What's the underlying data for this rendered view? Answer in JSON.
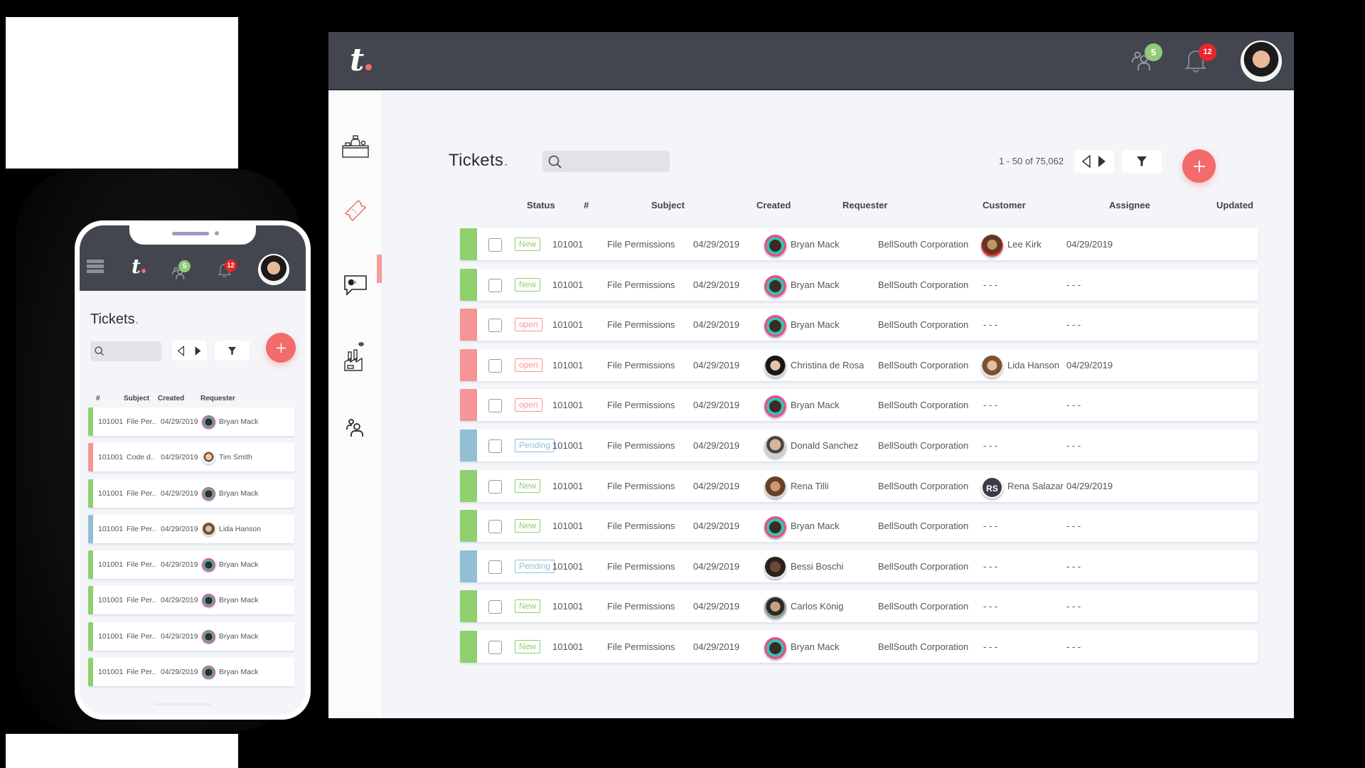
{
  "colors": {
    "accent": "#f36b6b",
    "header_bg": "#43464f",
    "page_bg": "#f4f5f9",
    "status_new": "#8fd06f",
    "status_open": "#f69595",
    "status_pending": "#93bfd5",
    "badge_green": "#8fcb7a",
    "badge_red": "#e8262b"
  },
  "desktop": {
    "header": {
      "logo": "t",
      "users_icon": "users-icon",
      "users_badge": "5",
      "bell_icon": "bell-icon",
      "bell_badge": "12",
      "avatar": "profile-avatar"
    },
    "sidebar": {
      "items": [
        {
          "name": "reception-desk",
          "icon": "front-desk-icon",
          "active": false
        },
        {
          "name": "tickets",
          "icon": "ticket-icon",
          "active": true
        },
        {
          "name": "chat",
          "icon": "chat-bubble-icon",
          "active": false
        },
        {
          "name": "companies",
          "icon": "factory-icon",
          "active": false
        },
        {
          "name": "contacts",
          "icon": "users-icon",
          "active": false
        }
      ]
    },
    "page": {
      "title": "Tickets",
      "title_dot": ".",
      "search_placeholder": "",
      "pagination": "1 - 50 of 75,062",
      "prev_icon": "triangle-left-outline-icon",
      "next_icon": "triangle-right-filled-icon",
      "filter_icon": "funnel-icon",
      "add_icon": "plus-icon"
    },
    "table": {
      "columns": [
        "Status",
        "#",
        "Subject",
        "Created",
        "Requester",
        "Customer",
        "Assignee",
        "Updated"
      ],
      "rows": [
        {
          "status": "New",
          "type": "new",
          "id": "101001",
          "subject": "File Permissions",
          "created": "04/29/2019",
          "requester": "Bryan Mack",
          "req_av": "bryan",
          "customer": "BellSouth Corporation",
          "assignee": "Lee Kirk",
          "asg_av": "leekirk",
          "updated": "04/29/2019"
        },
        {
          "status": "New",
          "type": "new",
          "id": "101001",
          "subject": "File Permissions",
          "created": "04/29/2019",
          "requester": "Bryan Mack",
          "req_av": "bryan",
          "customer": "BellSouth Corporation",
          "assignee": "- - -",
          "asg_av": "",
          "updated": "- - -"
        },
        {
          "status": "open",
          "type": "open",
          "id": "101001",
          "subject": "File Permissions",
          "created": "04/29/2019",
          "requester": "Bryan Mack",
          "req_av": "bryan",
          "customer": "BellSouth Corporation",
          "assignee": "- - -",
          "asg_av": "",
          "updated": "- - -"
        },
        {
          "status": "open",
          "type": "open",
          "id": "101001",
          "subject": "File Permissions",
          "created": "04/29/2019",
          "requester": "Christina de Rosa",
          "req_av": "christina",
          "customer": "BellSouth Corporation",
          "assignee": "Lida Hanson",
          "asg_av": "lida",
          "updated": "04/29/2019"
        },
        {
          "status": "open",
          "type": "open",
          "id": "101001",
          "subject": "File Permissions",
          "created": "04/29/2019",
          "requester": "Bryan Mack",
          "req_av": "bryan",
          "customer": "BellSouth Corporation",
          "assignee": "- - -",
          "asg_av": "",
          "updated": "- - -"
        },
        {
          "status": "Pending",
          "type": "pending",
          "id": "101001",
          "subject": "File Permissions",
          "created": "04/29/2019",
          "requester": "Donald Sanchez",
          "req_av": "donald",
          "customer": "BellSouth Corporation",
          "assignee": "- - -",
          "asg_av": "",
          "updated": "- - -"
        },
        {
          "status": "New",
          "type": "new",
          "id": "101001",
          "subject": "File Permissions",
          "created": "04/29/2019",
          "requester": "Rena Tilli",
          "req_av": "rena",
          "customer": "BellSouth Corporation",
          "assignee": "Rena Salazar",
          "asg_av": "initials",
          "asg_initials": "RS",
          "updated": "04/29/2019"
        },
        {
          "status": "New",
          "type": "new",
          "id": "101001",
          "subject": "File Permissions",
          "created": "04/29/2019",
          "requester": "Bryan Mack",
          "req_av": "bryan",
          "customer": "BellSouth Corporation",
          "assignee": "- - -",
          "asg_av": "",
          "updated": "- - -"
        },
        {
          "status": "Pending",
          "type": "pending",
          "id": "101001",
          "subject": "File Permissions",
          "created": "04/29/2019",
          "requester": "Bessi Boschi",
          "req_av": "bessi",
          "customer": "BellSouth Corporation",
          "assignee": "- - -",
          "asg_av": "",
          "updated": "- - -"
        },
        {
          "status": "New",
          "type": "new",
          "id": "101001",
          "subject": "File Permissions",
          "created": "04/29/2019",
          "requester": "Carlos König",
          "req_av": "carlos",
          "customer": "BellSouth Corporation",
          "assignee": "- - -",
          "asg_av": "",
          "updated": "- - -"
        },
        {
          "status": "New",
          "type": "new",
          "id": "101001",
          "subject": "File Permissions",
          "created": "04/29/2019",
          "requester": "Bryan Mack",
          "req_av": "bryan",
          "customer": "BellSouth Corporation",
          "assignee": "- - -",
          "asg_av": "",
          "updated": "- - -"
        }
      ]
    }
  },
  "mobile": {
    "header": {
      "menu_icon": "hamburger-icon",
      "logo": "t",
      "users_badge": "5",
      "bell_badge": "12"
    },
    "page": {
      "title": "Tickets",
      "title_dot": "."
    },
    "table": {
      "columns": [
        "#",
        "Subject",
        "Created",
        "Requester"
      ],
      "rows": [
        {
          "type": "new",
          "id": "101001",
          "subject": "File Per..",
          "created": "04/29/2019",
          "requester": "Bryan Mack",
          "req_av": "bryan"
        },
        {
          "type": "open",
          "id": "101001",
          "subject": "Code d..",
          "created": "04/29/2019",
          "requester": "Tim Smith",
          "req_av": "tim"
        },
        {
          "type": "new",
          "id": "101001",
          "subject": "File Per..",
          "created": "04/29/2019",
          "requester": "Bryan Mack",
          "req_av": "bryan"
        },
        {
          "type": "pending",
          "id": "101001",
          "subject": "File Per..",
          "created": "04/29/2019",
          "requester": "Lida Hanson",
          "req_av": "lida"
        },
        {
          "type": "new",
          "id": "101001",
          "subject": "File Per..",
          "created": "04/29/2019",
          "requester": "Bryan Mack",
          "req_av": "bryan"
        },
        {
          "type": "new",
          "id": "101001",
          "subject": "File Per..",
          "created": "04/29/2019",
          "requester": "Bryan Mack",
          "req_av": "bryan"
        },
        {
          "type": "new",
          "id": "101001",
          "subject": "File Per..",
          "created": "04/29/2019",
          "requester": "Bryan Mack",
          "req_av": "bryan"
        },
        {
          "type": "new",
          "id": "101001",
          "subject": "File Per..",
          "created": "04/29/2019",
          "requester": "Bryan Mack",
          "req_av": "bryan"
        }
      ]
    }
  }
}
